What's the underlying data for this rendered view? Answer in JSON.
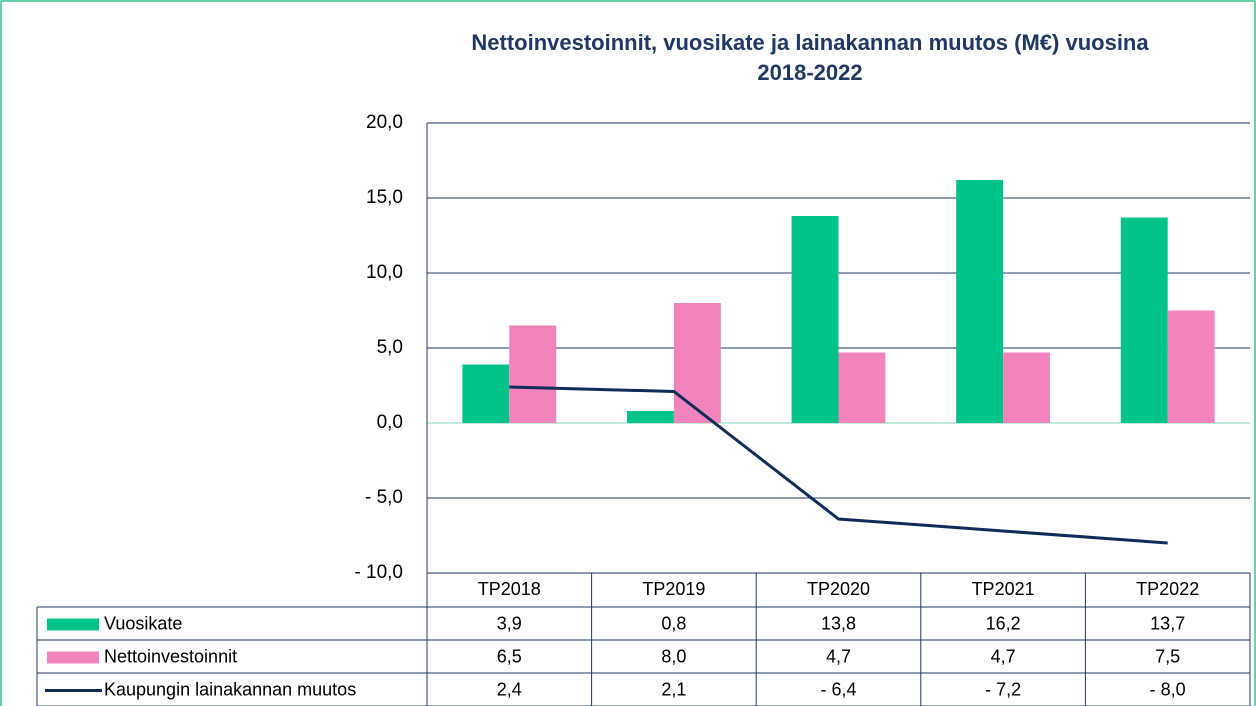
{
  "chart_data": {
    "type": "bar",
    "title": "Nettoinvestoinnit, vuosikate ja lainakannan muutos (M€) vuosina 2018-2022",
    "categories": [
      "TP2018",
      "TP2019",
      "TP2020",
      "TP2021",
      "TP2022"
    ],
    "series": [
      {
        "name": "Vuosikate",
        "type": "bar",
        "color": "#00c389",
        "values": [
          3.9,
          0.8,
          13.8,
          16.2,
          13.7
        ],
        "value_labels": [
          "3,9",
          "0,8",
          "13,8",
          "16,2",
          "13,7"
        ]
      },
      {
        "name": "Nettoinvestoinnit",
        "type": "bar",
        "color": "#f384bb",
        "values": [
          6.5,
          8.0,
          4.7,
          4.7,
          7.5
        ],
        "value_labels": [
          "6,5",
          "8,0",
          "4,7",
          "4,7",
          "7,5"
        ]
      },
      {
        "name": "Kaupungin lainakannan muutos",
        "type": "line",
        "color": "#0e2d5a",
        "values": [
          2.4,
          2.1,
          -6.4,
          -7.2,
          -8.0
        ],
        "value_labels": [
          "2,4",
          "2,1",
          "- 6,4",
          "- 7,2",
          "- 8,0"
        ]
      }
    ],
    "ylim": [
      -10,
      20
    ],
    "yticks": [
      {
        "value": -10,
        "label": "- 10,0"
      },
      {
        "value": -5,
        "label": "- 5,0"
      },
      {
        "value": 0,
        "label": "0,0"
      },
      {
        "value": 5,
        "label": "5,0"
      },
      {
        "value": 10,
        "label": "10,0"
      },
      {
        "value": 15,
        "label": "15,0"
      },
      {
        "value": 20,
        "label": "20,0"
      }
    ],
    "grid": true
  }
}
